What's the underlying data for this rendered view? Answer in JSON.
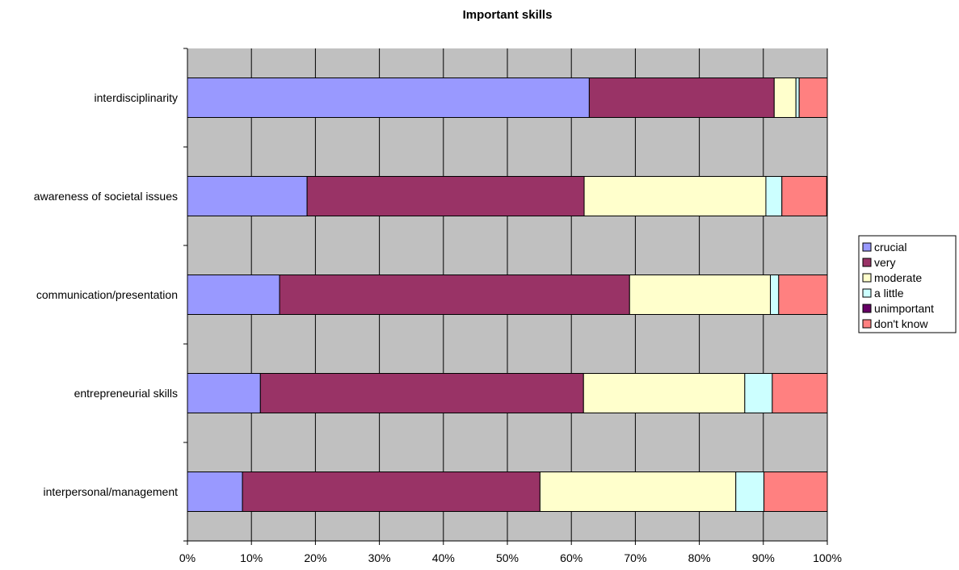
{
  "chart_data": {
    "type": "bar",
    "orientation": "horizontal",
    "stacked": "percent",
    "title": "Important skills",
    "xlabel": "",
    "ylabel": "",
    "xlim": [
      0,
      100
    ],
    "x_ticks": [
      "0%",
      "10%",
      "20%",
      "30%",
      "40%",
      "50%",
      "60%",
      "70%",
      "80%",
      "90%",
      "100%"
    ],
    "grid": true,
    "legend_position": "right",
    "background": "#C0C0C0",
    "categories": [
      "interdisciplinarity",
      "awareness of societal issues",
      "communication/presentation",
      "entrepreneurial skills",
      "interpersonal/management"
    ],
    "series": [
      {
        "name": "crucial",
        "color": "#9999FF",
        "values": [
          62.8,
          18.7,
          14.4,
          11.4,
          8.6
        ]
      },
      {
        "name": "very",
        "color": "#993366",
        "values": [
          28.9,
          43.3,
          54.7,
          50.5,
          46.5
        ]
      },
      {
        "name": "moderate",
        "color": "#FFFFCC",
        "values": [
          3.4,
          28.4,
          22.0,
          25.2,
          30.6
        ]
      },
      {
        "name": "a little",
        "color": "#CCFFFF",
        "values": [
          0.5,
          2.5,
          1.3,
          4.3,
          4.4
        ]
      },
      {
        "name": "unimportant",
        "color": "#660066",
        "values": [
          0,
          0,
          0,
          0,
          0
        ]
      },
      {
        "name": "don't know",
        "color": "#FF8080",
        "values": [
          4.4,
          7.0,
          7.6,
          8.6,
          9.9
        ]
      }
    ]
  }
}
